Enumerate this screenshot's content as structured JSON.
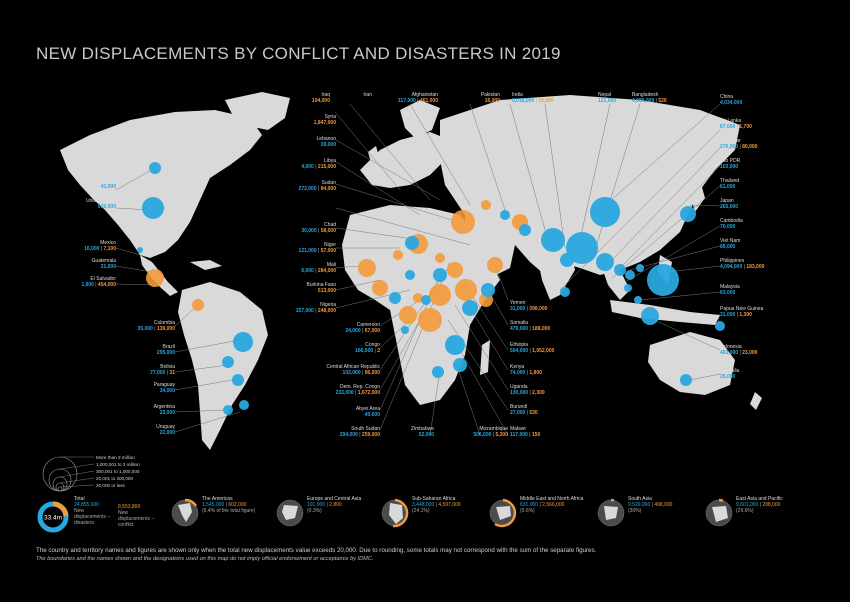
{
  "title": "NEW DISPLACEMENTS BY CONFLICT AND DISASTERS IN 2019",
  "colors": {
    "disasters": "#29a8e0",
    "conflict": "#f39a3a",
    "land": "#d9d9d9",
    "background": "#000000"
  },
  "countries": [
    {
      "name": "Canada",
      "disasters": "41,000",
      "conflict": ""
    },
    {
      "name": "United States",
      "disasters": "916,000",
      "conflict": ""
    },
    {
      "name": "Mexico",
      "disasters": "16,000",
      "conflict": "7,100"
    },
    {
      "name": "Guatemala",
      "disasters": "21,000",
      "conflict": ""
    },
    {
      "name": "El Salvador",
      "disasters": "1,900",
      "conflict": "454,000"
    },
    {
      "name": "Colombia",
      "disasters": "35,000",
      "conflict": "139,000"
    },
    {
      "name": "Brazil",
      "disasters": "295,000",
      "conflict": ""
    },
    {
      "name": "Bolivia",
      "disasters": "77,000",
      "conflict": "31"
    },
    {
      "name": "Paraguay",
      "disasters": "34,000",
      "conflict": ""
    },
    {
      "name": "Argentina",
      "disasters": "23,000",
      "conflict": ""
    },
    {
      "name": "Uruguay",
      "disasters": "22,000",
      "conflict": ""
    },
    {
      "name": "Iraq",
      "disasters": "",
      "conflict": "104,000"
    },
    {
      "name": "Iran",
      "disasters": "",
      "conflict": ""
    },
    {
      "name": "Afghanistan",
      "disasters": "117,000",
      "conflict": "461,000"
    },
    {
      "name": "Pakistan",
      "disasters": "",
      "conflict": "16,000"
    },
    {
      "name": "India",
      "disasters": "5,018,000",
      "conflict": "19,000"
    },
    {
      "name": "Nepal",
      "disasters": "121,000",
      "conflict": ""
    },
    {
      "name": "Bangladesh",
      "disasters": "4,086,000",
      "conflict": "520"
    },
    {
      "name": "Syria",
      "disasters": "",
      "conflict": "1,847,000"
    },
    {
      "name": "Lebanon",
      "disasters": "39,000",
      "conflict": ""
    },
    {
      "name": "Libya",
      "disasters": "4,600",
      "conflict": "215,000"
    },
    {
      "name": "Sudan",
      "disasters": "272,000",
      "conflict": "84,000"
    },
    {
      "name": "Chad",
      "disasters": "30,000",
      "conflict": "58,000"
    },
    {
      "name": "Niger",
      "disasters": "121,000",
      "conflict": "57,000"
    },
    {
      "name": "Mali",
      "disasters": "6,600",
      "conflict": "284,000"
    },
    {
      "name": "Burkina Faso",
      "disasters": "",
      "conflict": "513,000"
    },
    {
      "name": "Nigeria",
      "disasters": "157,000",
      "conflict": "248,000"
    },
    {
      "name": "Cameroon",
      "disasters": "24,000",
      "conflict": "67,000"
    },
    {
      "name": "Congo",
      "disasters": "166,000",
      "conflict": "2"
    },
    {
      "name": "Central African Republic",
      "disasters": "102,000",
      "conflict": "96,000"
    },
    {
      "name": "Dem. Rep. Congo",
      "disasters": "233,000",
      "conflict": "1,672,000"
    },
    {
      "name": "Abyei Area",
      "disasters": "40,000",
      "conflict": ""
    },
    {
      "name": "South Sudan",
      "disasters": "294,000",
      "conflict": "259,000"
    },
    {
      "name": "Zimbabwe",
      "disasters": "52,000",
      "conflict": ""
    },
    {
      "name": "Mozambique",
      "disasters": "506,000",
      "conflict": "5,300"
    },
    {
      "name": "Malawi",
      "disasters": "117,000",
      "conflict": "150"
    },
    {
      "name": "Burundi",
      "disasters": "27,000",
      "conflict": "530"
    },
    {
      "name": "Uganda",
      "disasters": "130,000",
      "conflict": "2,300"
    },
    {
      "name": "Kenya",
      "disasters": "74,000",
      "conflict": "1,800"
    },
    {
      "name": "Ethiopia",
      "disasters": "504,000",
      "conflict": "1,052,000"
    },
    {
      "name": "Somalia",
      "disasters": "479,000",
      "conflict": "188,000"
    },
    {
      "name": "Yemen",
      "disasters": "31,000",
      "conflict": "398,000"
    },
    {
      "name": "China",
      "disasters": "4,034,000",
      "conflict": ""
    },
    {
      "name": "Sri Lanka",
      "disasters": "87,000",
      "conflict": "1,700"
    },
    {
      "name": "Myanmar",
      "disasters": "270,000",
      "conflict": "80,000"
    },
    {
      "name": "Lao PDR",
      "disasters": "103,000",
      "conflict": ""
    },
    {
      "name": "Thailand",
      "disasters": "61,000",
      "conflict": ""
    },
    {
      "name": "Japan",
      "disasters": "265,000",
      "conflict": ""
    },
    {
      "name": "Cambodia",
      "disasters": "70,000",
      "conflict": ""
    },
    {
      "name": "Viet Nam",
      "disasters": "89,000",
      "conflict": ""
    },
    {
      "name": "Philippines",
      "disasters": "4,094,000",
      "conflict": "183,000"
    },
    {
      "name": "Malaysia",
      "disasters": "63,000",
      "conflict": ""
    },
    {
      "name": "Papua New Guinea",
      "disasters": "31,000",
      "conflict": "1,300"
    },
    {
      "name": "Indonesia",
      "disasters": "463,000",
      "conflict": "23,000"
    },
    {
      "name": "Australia",
      "disasters": "25,000",
      "conflict": ""
    }
  ],
  "size_legend": [
    "More than 3 million",
    "1,000,001 to 3 million",
    "300,001 to 1,000,000",
    "20,001 to 300,000",
    "20,000 or less"
  ],
  "total": {
    "center": "33.4m",
    "label": "Total",
    "disasters": "24,855,000",
    "conflict": "8,553,800",
    "disasters_caption": "New displacements – disasters",
    "conflict_caption": "New displacements – conflict"
  },
  "regions": [
    {
      "name": "The Americas",
      "disasters": "1,545,000",
      "conflict": "602,000",
      "share": "(6.4% of the total figure)"
    },
    {
      "name": "Europe and Central Asia",
      "disasters": "101,000",
      "conflict": "2,800",
      "share": "(0.3%)"
    },
    {
      "name": "Sub-Saharan Africa",
      "disasters": "3,448,000",
      "conflict": "4,597,000",
      "share": "(24.1%)"
    },
    {
      "name": "Middle East and North Africa",
      "disasters": "631,000",
      "conflict": "2,566,000",
      "share": "(9.6%)"
    },
    {
      "name": "South Asia",
      "disasters": "9,529,000",
      "conflict": "498,000",
      "share": "(30%)"
    },
    {
      "name": "East Asia and Pacific",
      "disasters": "9,601,000",
      "conflict": "288,000",
      "share": "(29.6%)"
    }
  ],
  "note": "The country and territory names and figures are shown only when the total new displacements value exceeds 20,000. Due to rounding, some totals may not correspond with the sum of the separate figures.",
  "disclaimer": "The boundaries and the names shown and the designations used on this map do not imply official endorsement or acceptance by IDMC."
}
